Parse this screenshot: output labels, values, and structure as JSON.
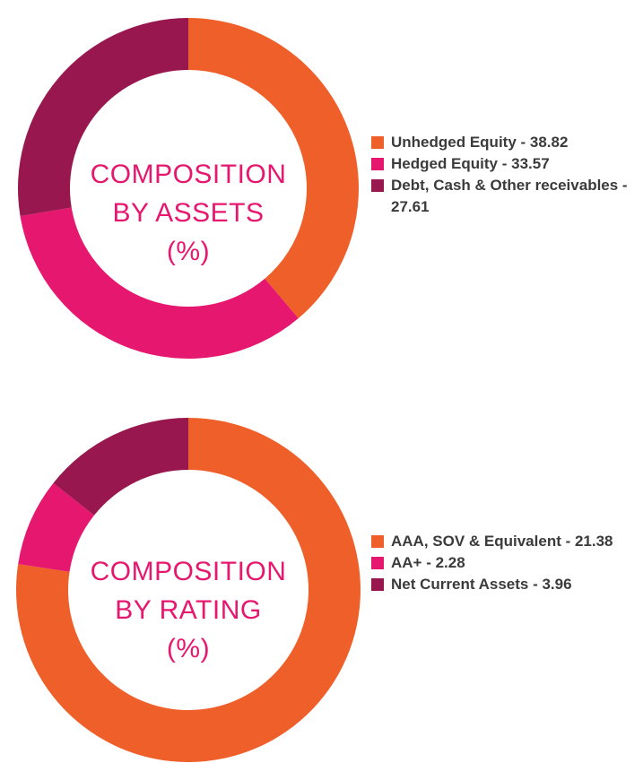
{
  "chart_data": [
    {
      "type": "pie",
      "title_lines": [
        "COMPOSITION",
        "BY ASSETS",
        "(%)"
      ],
      "slices": [
        {
          "label": "Unhedged Equity - 38.82",
          "value": 38.82,
          "color": "#ef5f29"
        },
        {
          "label": "Hedged Equity - 33.57",
          "value": 33.57,
          "color": "#e6176e"
        },
        {
          "label": "Debt, Cash & Other receivables - 27.61",
          "value": 27.61,
          "color": "#99174f"
        }
      ]
    },
    {
      "type": "pie",
      "title_lines": [
        "COMPOSITION",
        "BY RATING",
        "(%)"
      ],
      "slices": [
        {
          "label": "AAA, SOV & Equivalent - 21.38",
          "value": 21.38,
          "color": "#ef5f29"
        },
        {
          "label": "AA+ - 2.28",
          "value": 2.28,
          "color": "#e6176e"
        },
        {
          "label": "Net Current Assets - 3.96",
          "value": 3.96,
          "color": "#99174f"
        }
      ]
    }
  ]
}
